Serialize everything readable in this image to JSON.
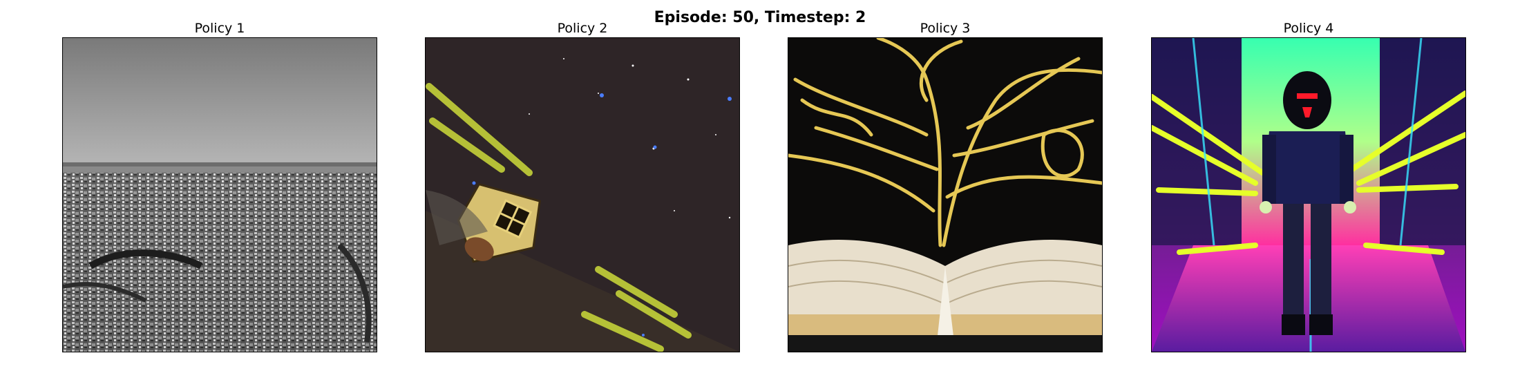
{
  "figure": {
    "suptitle": "Episode: 50, Timestep: 2"
  },
  "panels": [
    {
      "title": "Policy 1",
      "image": "black-and-white aerial view of a dense city"
    },
    {
      "title": "Policy 2",
      "image": "spaceship streaking through star field"
    },
    {
      "title": "Policy 3",
      "image": "open book with glowing yellow tendrils"
    },
    {
      "title": "Policy 4",
      "image": "hooded figure in neon cyberpunk corridor"
    }
  ]
}
